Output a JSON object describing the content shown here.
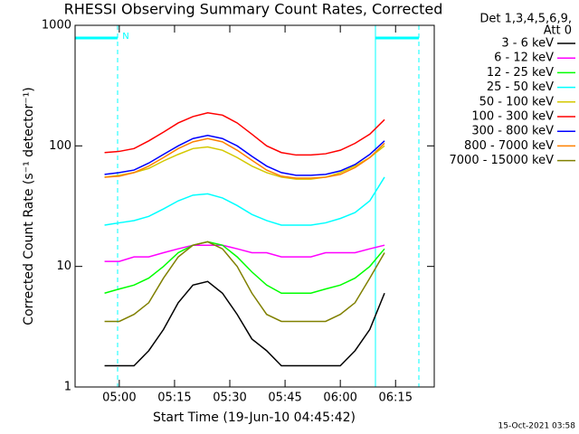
{
  "chart_data": {
    "type": "line",
    "title": "RHESSI Observing Summary Count Rates, Corrected",
    "legend_header": [
      "Det 1,3,4,5,6,9,",
      "Att 0"
    ],
    "x_label": "Start Time (19-Jun-10 04:45:42)",
    "y_label": "Corrected Count Rate (s⁻¹ detector⁻¹)",
    "annotations": [
      "N"
    ],
    "footer": "15-Oct-2021 03:58",
    "log_y": true,
    "legend_position": "right",
    "x": [
      296,
      300,
      304,
      308,
      312,
      316,
      320,
      324,
      328,
      332,
      336,
      340,
      344,
      348,
      352,
      356,
      360,
      364,
      368,
      372
    ],
    "xlim": [
      288,
      385.5
    ],
    "xticks": [
      {
        "value": 300,
        "label": "05:00"
      },
      {
        "value": 315,
        "label": "05:15"
      },
      {
        "value": 330,
        "label": "05:30"
      },
      {
        "value": 345,
        "label": "05:45"
      },
      {
        "value": 360,
        "label": "06:00"
      },
      {
        "value": 375,
        "label": "06:15"
      }
    ],
    "ylim": [
      1,
      1000
    ],
    "yticks": [
      1,
      10,
      100,
      1000
    ],
    "series": [
      {
        "name": "3 - 6 keV",
        "color": "#000000",
        "values": [
          1.5,
          1.5,
          1.5,
          2,
          3,
          5,
          7,
          7.5,
          6,
          4,
          2.5,
          2,
          1.5,
          1.5,
          1.5,
          1.5,
          1.5,
          2,
          3,
          6
        ]
      },
      {
        "name": "6 - 12 keV",
        "color": "#ff00ff",
        "values": [
          11,
          11,
          12,
          12,
          13,
          14,
          15,
          15,
          15,
          14,
          13,
          13,
          12,
          12,
          12,
          13,
          13,
          13,
          14,
          15
        ]
      },
      {
        "name": "12 - 25 keV",
        "color": "#00ff00",
        "values": [
          6,
          6.5,
          7,
          8,
          10,
          13,
          15,
          16,
          15,
          12,
          9,
          7,
          6,
          6,
          6,
          6.5,
          7,
          8,
          10,
          14
        ]
      },
      {
        "name": "25 - 50 keV",
        "color": "#00ffff",
        "values": [
          22,
          23,
          24,
          26,
          30,
          35,
          39,
          40,
          37,
          32,
          27,
          24,
          22,
          22,
          22,
          23,
          25,
          28,
          35,
          55
        ]
      },
      {
        "name": "50 - 100 keV",
        "color": "#d4c800",
        "values": [
          55,
          57,
          60,
          65,
          75,
          85,
          95,
          98,
          92,
          80,
          68,
          60,
          55,
          53,
          53,
          55,
          60,
          68,
          80,
          100
        ]
      },
      {
        "name": "100 - 300 keV",
        "color": "#ff0000",
        "values": [
          88,
          90,
          95,
          110,
          130,
          155,
          175,
          188,
          180,
          155,
          125,
          100,
          88,
          84,
          84,
          86,
          92,
          105,
          125,
          165
        ]
      },
      {
        "name": "300 - 800 keV",
        "color": "#0000ff",
        "values": [
          58,
          60,
          63,
          72,
          85,
          100,
          115,
          122,
          115,
          100,
          82,
          68,
          60,
          57,
          57,
          58,
          62,
          70,
          85,
          110
        ]
      },
      {
        "name": "800 - 7000 keV",
        "color": "#ff8000",
        "values": [
          55,
          56,
          60,
          68,
          80,
          95,
          108,
          115,
          108,
          92,
          76,
          63,
          56,
          54,
          54,
          55,
          58,
          66,
          80,
          105
        ]
      },
      {
        "name": "7000 - 15000 keV",
        "color": "#808000",
        "values": [
          3.5,
          3.5,
          4,
          5,
          8,
          12,
          15,
          16,
          14,
          10,
          6,
          4,
          3.5,
          3.5,
          3.5,
          3.5,
          4,
          5,
          8,
          13
        ]
      }
    ]
  }
}
